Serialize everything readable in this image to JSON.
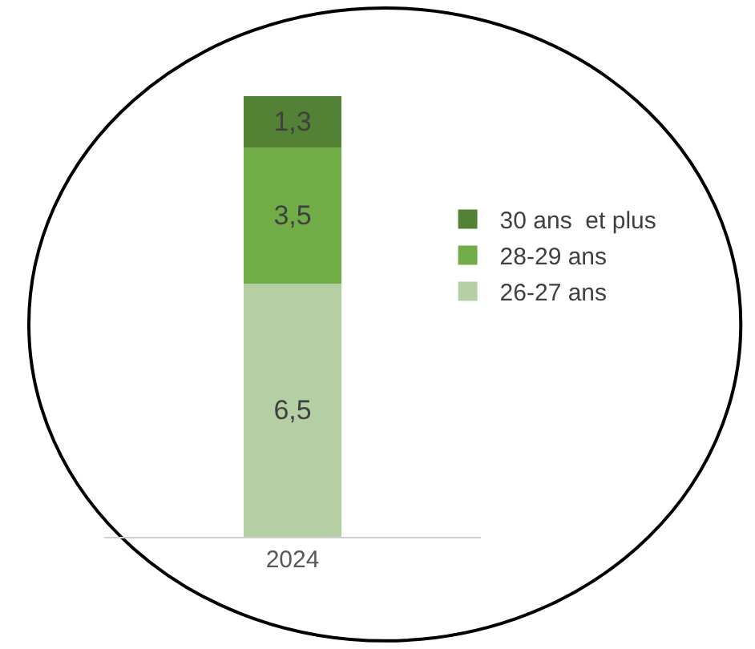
{
  "chart_data": {
    "type": "bar",
    "stacked": true,
    "categories": [
      "2024"
    ],
    "legend": "right",
    "tick_labels": "x",
    "series": [
      {
        "name": "26-27 ans",
        "color": "#b5cfa5",
        "values": [
          6.5
        ],
        "value_labels": [
          "6,5"
        ]
      },
      {
        "name": "28-29 ans",
        "color": "#70ad47",
        "values": [
          3.5
        ],
        "value_labels": [
          "3,5"
        ]
      },
      {
        "name": "30 ans  et plus",
        "color": "#548235",
        "values": [
          1.3
        ],
        "value_labels": [
          "1,3"
        ]
      }
    ]
  }
}
